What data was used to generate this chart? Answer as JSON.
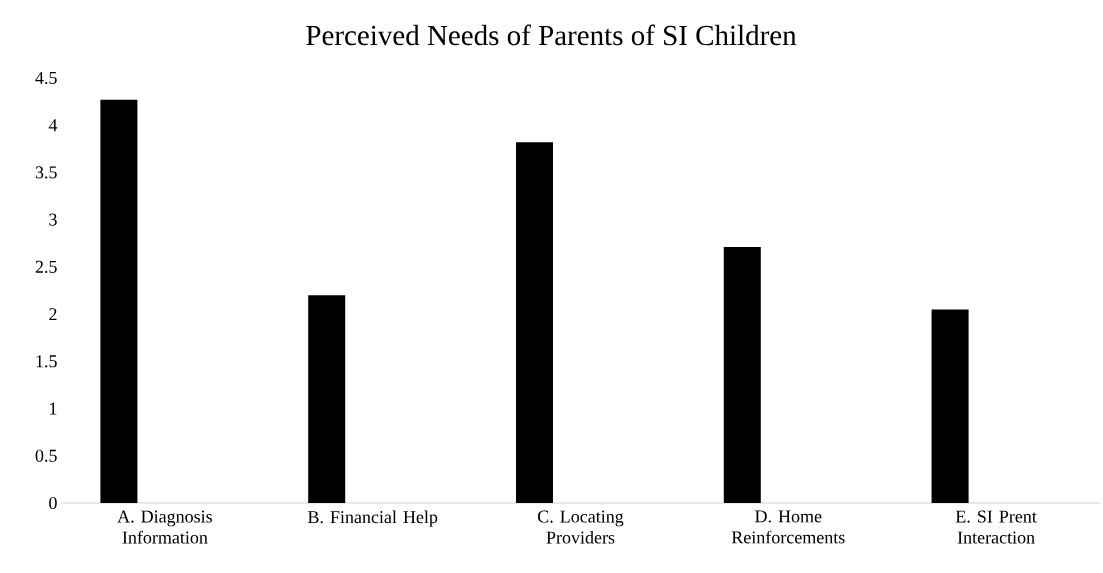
{
  "chart_data": {
    "type": "bar",
    "title": "Perceived Needs of Parents of SI Children",
    "categories": [
      "A. Diagnosis Information",
      "B. Financial Help",
      "C. Locating Providers",
      "D. Home Reinforcements",
      "E. SI Prent Interaction"
    ],
    "values": [
      4.27,
      2.2,
      3.82,
      2.71,
      2.05
    ],
    "color": "#000000",
    "ylim": [
      0,
      4.5
    ],
    "yticks": [
      0,
      0.5,
      1,
      1.5,
      2,
      2.5,
      3,
      3.5,
      4,
      4.5
    ],
    "grid": false
  }
}
